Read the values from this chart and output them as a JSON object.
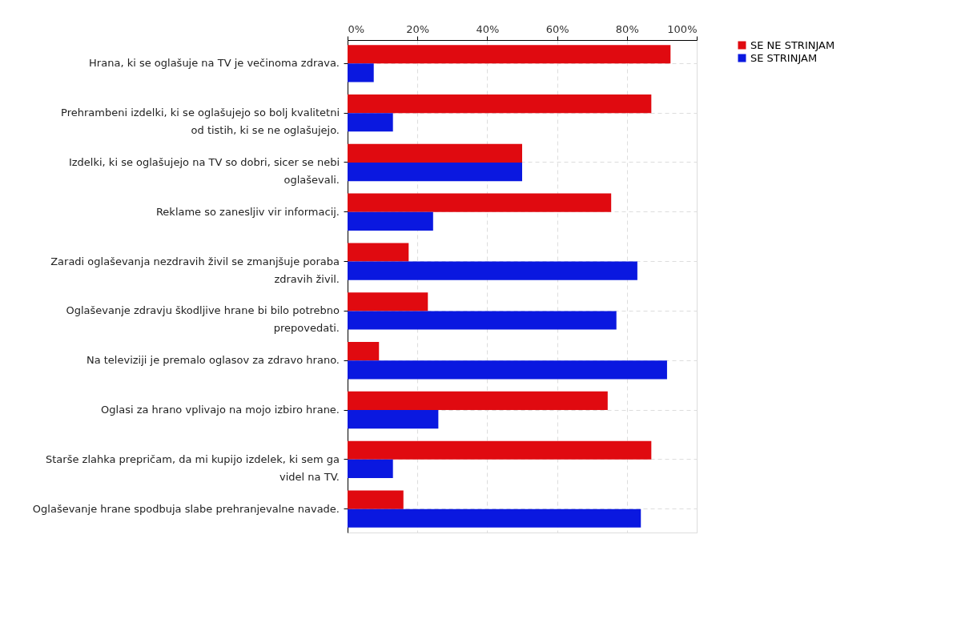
{
  "chart_data": {
    "type": "bar",
    "orientation": "horizontal",
    "categories": [
      "Hrana, ki se oglašuje na TV je večinoma zdrava.",
      "Prehrambeni izdelki, ki se oglašujejo so bolj kvalitetni od tistih, ki se ne oglašujejo.",
      "Izdelki, ki se oglašujejo na TV so dobri, sicer se nebi oglaševali.",
      "Reklame so zanesljiv vir informacij.",
      "Zaradi oglaševanja nezdravih živil se zmanjšuje poraba zdravih živil.",
      "Oglaševanje zdravju škodljive hrane bi bilo potrebno prepovedati.",
      "Na televiziji je premalo oglasov za zdravo hrano.",
      "Oglasi za hrano vplivajo na mojo izbiro hrane.",
      "Starše zlahka prepričam, da mi kupijo izdelek, ki sem ga videl na TV.",
      "Oglaševanje hrane spodbuja slabe prehranjevalne navade."
    ],
    "series": [
      {
        "name": "SE NE STRINJAM",
        "color": "#e00a10",
        "values": [
          92.5,
          87,
          50,
          75.5,
          17.5,
          23,
          9,
          74.5,
          87,
          16
        ]
      },
      {
        "name": "SE STRINJAM",
        "color": "#0a18e0",
        "values": [
          7.5,
          13,
          50,
          24.5,
          83,
          77,
          91.5,
          26,
          13,
          84
        ]
      }
    ],
    "xlim": [
      0,
      100
    ],
    "xticks": [
      {
        "value": 0,
        "label": "0%"
      },
      {
        "value": 20,
        "label": "20%"
      },
      {
        "value": 40,
        "label": "40%"
      },
      {
        "value": 60,
        "label": "60%"
      },
      {
        "value": 80,
        "label": "80%"
      },
      {
        "value": 100,
        "label": "100%"
      }
    ],
    "grid": true,
    "legend": "top right"
  }
}
